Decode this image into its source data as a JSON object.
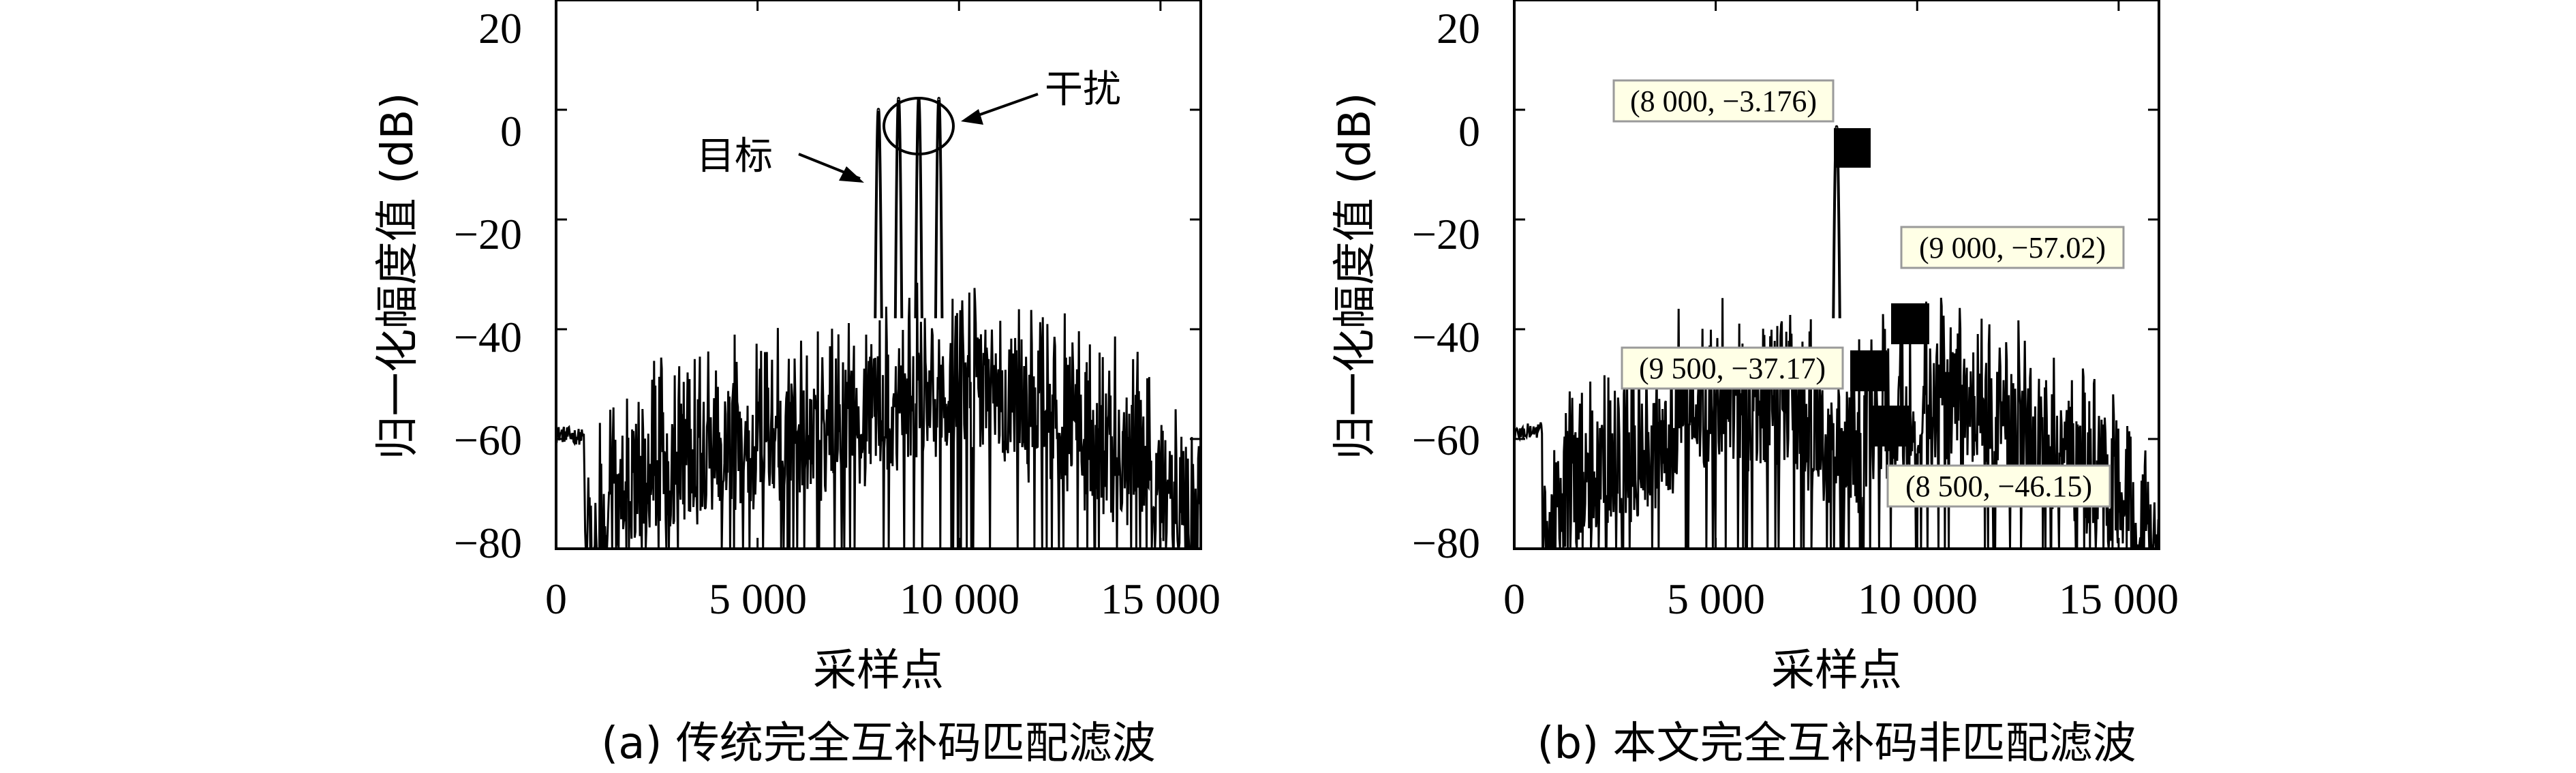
{
  "chart_data": [
    {
      "type": "line",
      "title": "",
      "caption": "(a) 传统完全互补码匹配滤波",
      "xlabel": "采样点",
      "ylabel": "归一化幅度值 (dB)",
      "xlim": [
        0,
        16000
      ],
      "ylim": [
        -80,
        20
      ],
      "xticks": [
        0,
        5000,
        10000,
        15000
      ],
      "xtick_labels": [
        "0",
        "5 000",
        "10 000",
        "15 000"
      ],
      "yticks": [
        20,
        0,
        -20,
        -40,
        -60,
        -80
      ],
      "ytick_labels": [
        "20",
        "0",
        "−20",
        "−40",
        "−60",
        "−80"
      ],
      "grid": false,
      "annotations": [
        {
          "text": "目标",
          "x": 7700,
          "y": 1
        },
        {
          "text": "干扰",
          "x": 9300,
          "y": 2
        }
      ],
      "series": [
        {
          "peaks": [
            {
              "x": 8000,
              "y": 0
            },
            {
              "x": 8500,
              "y": 2
            },
            {
              "x": 9000,
              "y": 2
            },
            {
              "x": 9500,
              "y": 2
            }
          ],
          "noise_envelope": [
            {
              "x": 0,
              "y": -59
            },
            {
              "x": 1000,
              "y": -60
            },
            {
              "x": 1500,
              "y": -52
            },
            {
              "x": 3000,
              "y": -45
            },
            {
              "x": 5000,
              "y": -42
            },
            {
              "x": 7800,
              "y": -38
            },
            {
              "x": 9000,
              "y": -33
            },
            {
              "x": 10000,
              "y": -32
            },
            {
              "x": 12000,
              "y": -37
            },
            {
              "x": 13500,
              "y": -43
            },
            {
              "x": 15000,
              "y": -47
            },
            {
              "x": 16000,
              "y": -63
            }
          ]
        }
      ]
    },
    {
      "type": "line",
      "title": "",
      "caption": "(b) 本文完全互补码非匹配滤波",
      "xlabel": "采样点",
      "ylabel": "归一化幅度值 (dB)",
      "xlim": [
        0,
        16000
      ],
      "ylim": [
        -80,
        20
      ],
      "xticks": [
        0,
        5000,
        10000,
        15000
      ],
      "xtick_labels": [
        "0",
        "5 000",
        "10 000",
        "15 000"
      ],
      "yticks": [
        20,
        0,
        -20,
        -40,
        -60,
        -80
      ],
      "ytick_labels": [
        "20",
        "0",
        "−20",
        "−40",
        "−60",
        "−80"
      ],
      "grid": false,
      "data_labels": [
        {
          "text": "(8 000, −3.176)",
          "x": 8000,
          "y": -3.176
        },
        {
          "text": "(9 000, −57.02)",
          "x": 9000,
          "y": -57.02
        },
        {
          "text": "(9 500, −37.17)",
          "x": 9500,
          "y": -37.17
        },
        {
          "text": "(8 500, −46.15)",
          "x": 8500,
          "y": -46.15
        }
      ],
      "series": [
        {
          "peaks": [
            {
              "x": 8000,
              "y": -3.176
            }
          ],
          "noise_envelope": [
            {
              "x": 0,
              "y": -59
            },
            {
              "x": 1000,
              "y": -58
            },
            {
              "x": 1500,
              "y": -50
            },
            {
              "x": 3000,
              "y": -45
            },
            {
              "x": 5000,
              "y": -33
            },
            {
              "x": 7000,
              "y": -37
            },
            {
              "x": 7800,
              "y": -42
            },
            {
              "x": 8300,
              "y": -45
            },
            {
              "x": 9000,
              "y": -40
            },
            {
              "x": 10500,
              "y": -33
            },
            {
              "x": 12000,
              "y": -38
            },
            {
              "x": 13500,
              "y": -43
            },
            {
              "x": 15000,
              "y": -50
            },
            {
              "x": 16000,
              "y": -63
            }
          ]
        }
      ]
    }
  ]
}
